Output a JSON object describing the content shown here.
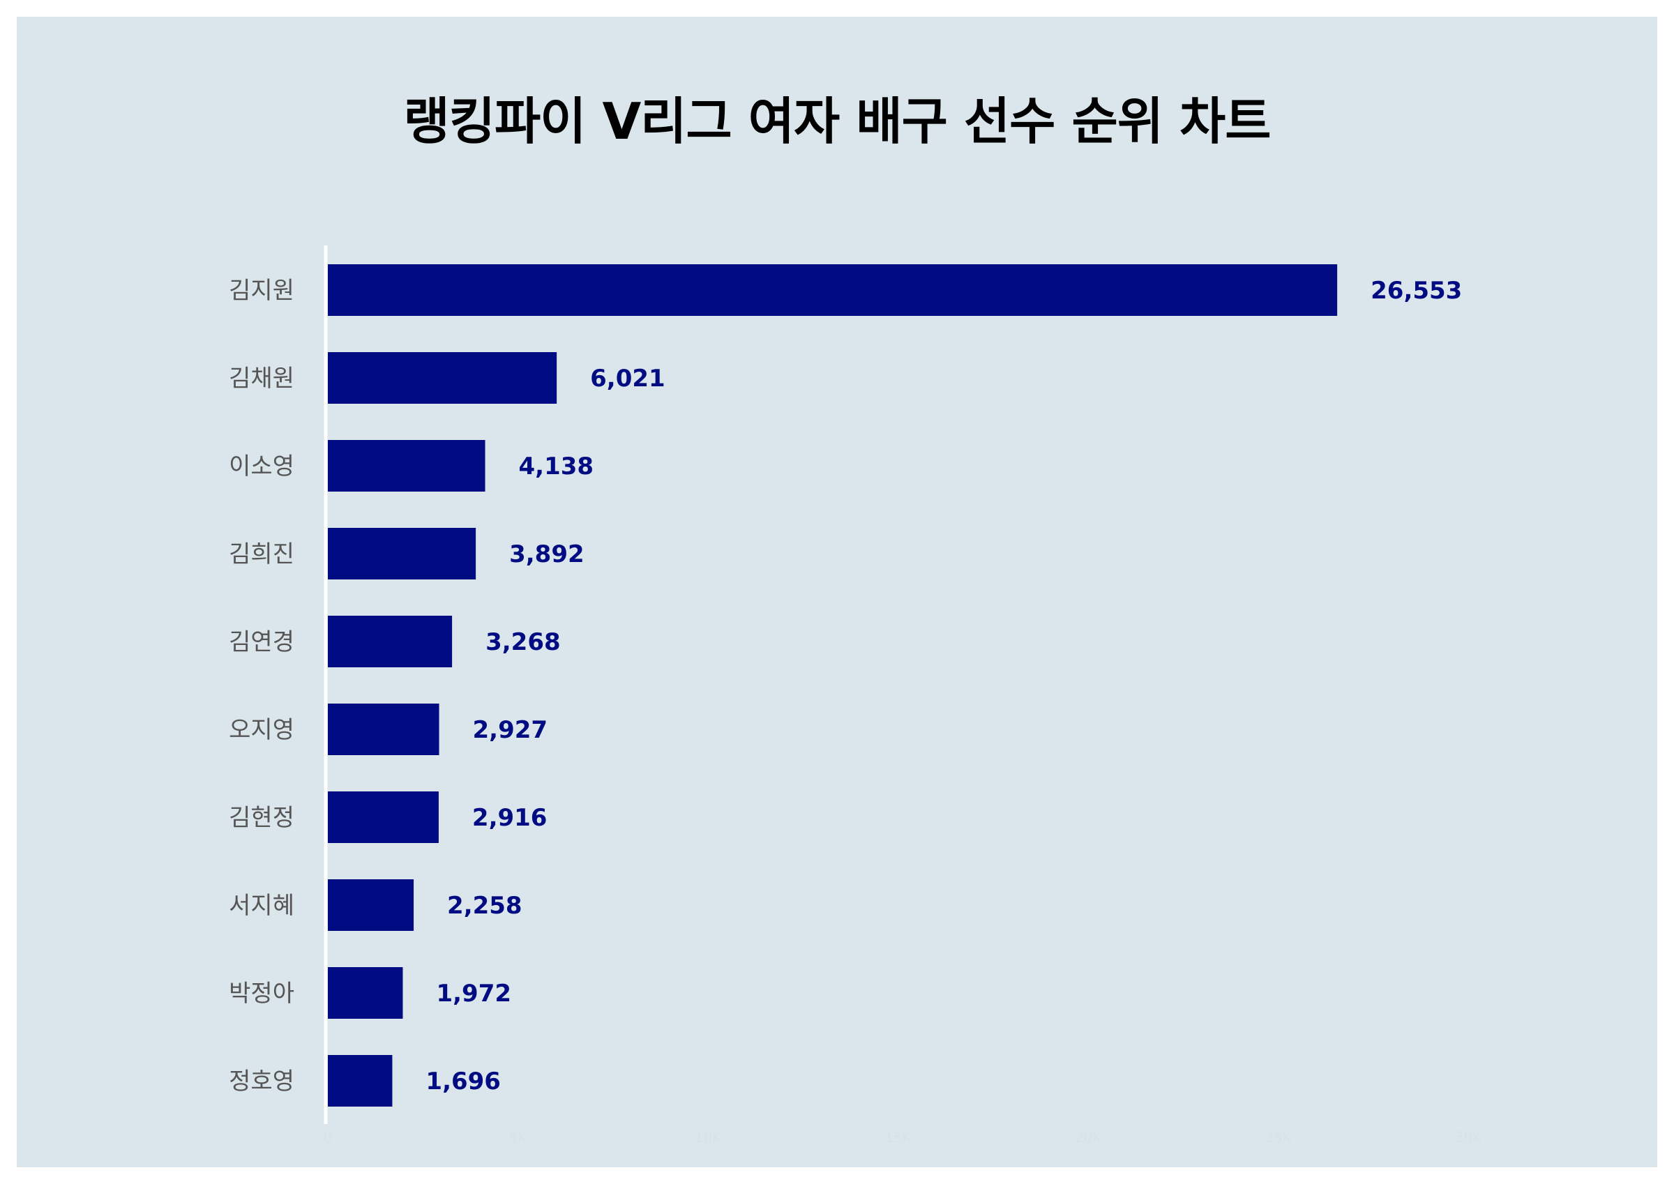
{
  "chart_data": {
    "type": "bar",
    "orientation": "horizontal",
    "title": "랭킹파이 V리그 여자 배구 선수 순위 차트",
    "categories": [
      "김지원",
      "김채원",
      "이소영",
      "김희진",
      "김연경",
      "오지영",
      "김현정",
      "서지혜",
      "박정아",
      "정호영"
    ],
    "values": [
      26553,
      6021,
      4138,
      3892,
      3268,
      2927,
      2916,
      2258,
      1972,
      1696
    ],
    "value_labels": [
      "26,553",
      "6,021",
      "4,138",
      "3,892",
      "3,268",
      "2,927",
      "2,916",
      "2,258",
      "1,972",
      "1,696"
    ],
    "xlim": [
      0,
      30000
    ],
    "grid": false,
    "legend": "none",
    "colors": {
      "bar": "#020c82",
      "value_label": "#020c82",
      "category_label": "#555555",
      "background": "#dbe6ec",
      "axis_line": "#ffffff"
    }
  }
}
